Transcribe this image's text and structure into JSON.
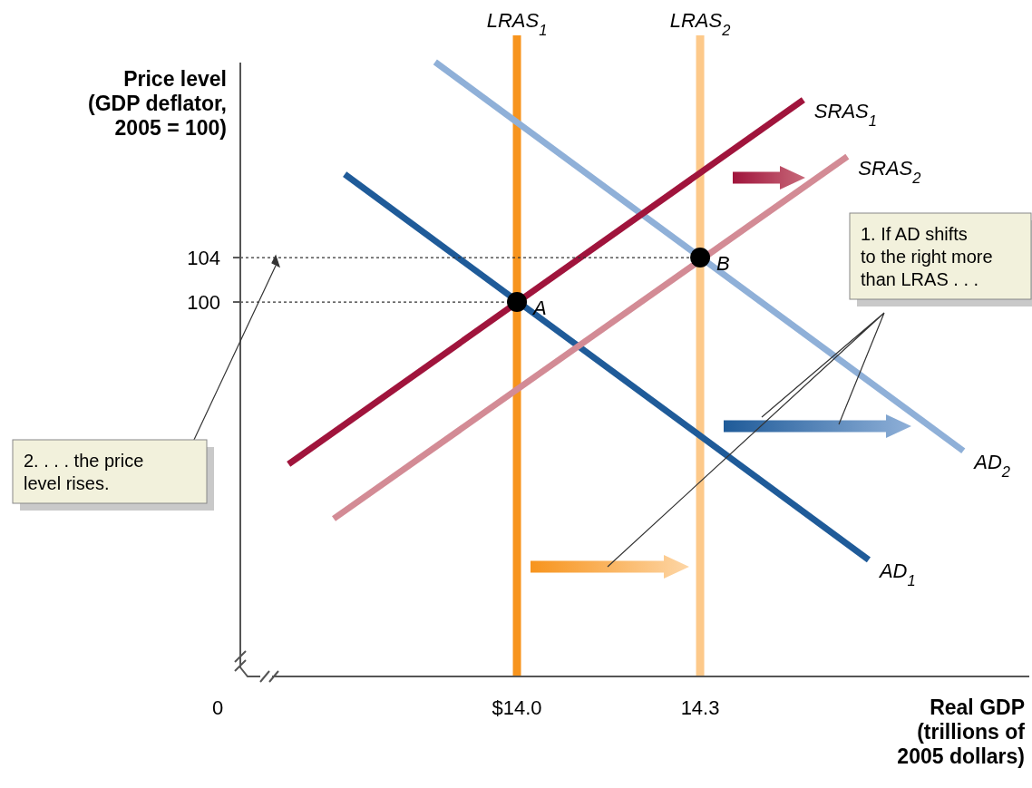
{
  "chart_data": {
    "type": "line",
    "xlabel": "Real GDP (trillions of 2005 dollars)",
    "ylabel": "Price level (GDP deflator, 2005 = 100)",
    "xlim": [
      13.547,
      14.839
    ],
    "ylim": [
      66.3,
      124
    ],
    "xticks": [
      {
        "value": 14.0,
        "label": "$14.0"
      },
      14.3
    ],
    "yticks": [
      100,
      104
    ],
    "grid": false,
    "series": [
      {
        "name": "AD$_{1}$",
        "color": "#1f5b99",
        "x": [
          13.718,
          14.576
        ],
        "values": [
          111.5,
          76.8
        ]
      },
      {
        "name": "AD$_{2}$",
        "color": "#8fb0d8",
        "x": [
          13.866,
          14.731
        ],
        "values": [
          121.6,
          86.6
        ]
      },
      {
        "name": "SRAS$_{1}$",
        "color": "#a0143c",
        "x": [
          13.626,
          14.469
        ],
        "values": [
          85.4,
          118.2
        ]
      },
      {
        "name": "SRAS$_{2}$",
        "color": "#d38b95",
        "x": [
          13.7,
          14.541
        ],
        "values": [
          80.5,
          113.1
        ]
      },
      {
        "color": "#333333",
        "line_style": "dotted",
        "x": [
          13.547,
          14.0
        ],
        "values": [
          100,
          100
        ]
      },
      {
        "color": "#333333",
        "line_style": "dotted",
        "x": [
          13.547,
          14.3
        ],
        "values": [
          104,
          104
        ]
      },
      {
        "type": "scatter",
        "marker": "circle",
        "color": "#000000",
        "x": [
          14.0,
          14.3
        ],
        "values": [
          100,
          104
        ]
      }
    ],
    "ref_lines": [
      {
        "axis": "x",
        "value": 14.0,
        "label": "LRAS$_{1}$",
        "color": "#f7941d"
      },
      {
        "axis": "x",
        "value": 14.3,
        "label": "LRAS$_{2}$",
        "color": "#fdc98a"
      }
    ],
    "annotations": [
      "0",
      {
        "text": "A",
        "x": 14.0,
        "y": 100
      },
      {
        "text": "B",
        "x": 14.3,
        "y": 104
      },
      "1. If AD shifts to the right more than LRAS . . .",
      "2. . . . the price level rises."
    ]
  }
}
